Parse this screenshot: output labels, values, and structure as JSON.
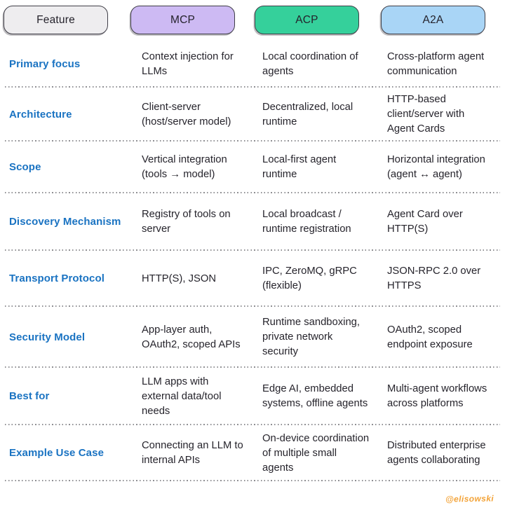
{
  "header": {
    "columns": [
      {
        "label": "Feature",
        "bg": "#eeedef"
      },
      {
        "label": "MCP",
        "bg": "#cdbaf3"
      },
      {
        "label": "ACP",
        "bg": "#35d09b"
      },
      {
        "label": "A2A",
        "bg": "#a9d5f6"
      }
    ]
  },
  "rows": [
    {
      "feature": "Primary focus",
      "mcp": "Context injection for\nLLMs",
      "acp": "Local coordination of\nagents",
      "a2a": "Cross-platform agent\ncommunication"
    },
    {
      "feature": "Architecture",
      "mcp": "Client-server\n(host/server model)",
      "acp": "Decentralized, local\nruntime",
      "a2a": "HTTP-based\nclient/server with\nAgent Cards"
    },
    {
      "feature": "Scope",
      "mcp": "Vertical integration\n(tools → model)",
      "acp": "Local-first agent\nruntime",
      "a2a": "Horizontal integration\n(agent ↔ agent)"
    },
    {
      "feature": "Discovery Mechanism",
      "mcp": "Registry of tools on\nserver",
      "acp": "Local broadcast /\nruntime registration",
      "a2a": "Agent Card over\nHTTP(S)"
    },
    {
      "feature": "Transport Protocol",
      "mcp": "HTTP(S), JSON",
      "acp": "IPC, ZeroMQ, gRPC\n(flexible)",
      "a2a": "JSON-RPC 2.0 over\nHTTPS"
    },
    {
      "feature": "Security Model",
      "mcp": "App-layer auth,\nOAuth2, scoped APIs",
      "acp": "Runtime sandboxing,\nprivate network\nsecurity",
      "a2a": "OAuth2, scoped\nendpoint exposure"
    },
    {
      "feature": "Best for",
      "mcp": "LLM apps with\nexternal data/tool\nneeds",
      "acp": "Edge AI, embedded\nsystems, offline agents",
      "a2a": "Multi-agent workflows\nacross platforms"
    },
    {
      "feature": "Example Use Case",
      "mcp": "Connecting an LLM to\ninternal APIs",
      "acp": "On-device coordination\nof multiple small\nagents",
      "a2a": "Distributed enterprise\nagents collaborating"
    }
  ],
  "watermark": {
    "text": "@elisowski",
    "color": "#f3a338"
  },
  "colors": {
    "feature_label": "#1a73c2",
    "body_text": "#26242c",
    "pill_border": "#3f3e47",
    "separator_dots": "#8f8f93"
  }
}
